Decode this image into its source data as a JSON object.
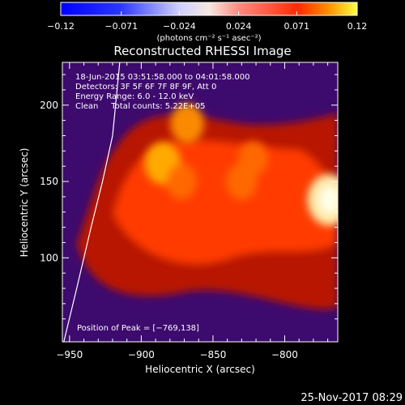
{
  "chart_data": {
    "type": "heatmap",
    "title": "Reconstructed RHESSI Image",
    "xlabel": "Heliocentric X (arcsec)",
    "ylabel": "Heliocentric Y (arcsec)",
    "xlim": [
      -955,
      -763
    ],
    "ylim": [
      45,
      228
    ],
    "xticks": [
      -950,
      -900,
      -850,
      -800
    ],
    "xtick_labels": [
      "−950",
      "−900",
      "−850",
      "−800"
    ],
    "yticks": [
      100,
      150,
      200
    ],
    "ytick_labels": [
      "100",
      "150",
      "200"
    ],
    "colorbar": {
      "range": [
        -0.12,
        0.12
      ],
      "ticks": [
        -0.12,
        -0.071,
        -0.024,
        0.024,
        0.071,
        0.12
      ],
      "tick_labels": [
        "−0.12",
        "−0.071",
        "−0.024",
        "0.024",
        "0.071",
        "0.12"
      ],
      "units": "(photons cm⁻² s⁻¹ asec⁻²)"
    },
    "sources": [
      {
        "x": -769,
        "y": 138,
        "peak": 0.12
      },
      {
        "x": -885,
        "y": 162,
        "peak": 0.085
      },
      {
        "x": -868,
        "y": 188,
        "peak": 0.075
      },
      {
        "x": -872,
        "y": 150,
        "peak": 0.06
      },
      {
        "x": -830,
        "y": 150,
        "peak": 0.062
      },
      {
        "x": -822,
        "y": 165,
        "peak": 0.055
      }
    ],
    "limb": [
      [
        -954,
        45
      ],
      [
        -945,
        80
      ],
      [
        -935,
        120
      ],
      [
        -927,
        150
      ],
      [
        -920,
        180
      ],
      [
        -915,
        228
      ]
    ],
    "info_lines": [
      "18-Jun-2015 03:51:58.000 to 04:01:58.000",
      "Detectors: 3F 5F 6F 7F 8F 9F, Att 0",
      "Energy Range: 6.0 - 12.0 keV",
      "Clean     Total counts: 5.22E+05"
    ],
    "peak_label": "Position of Peak = [−769,138]"
  },
  "footer_date": "25-Nov-2017 08:29"
}
